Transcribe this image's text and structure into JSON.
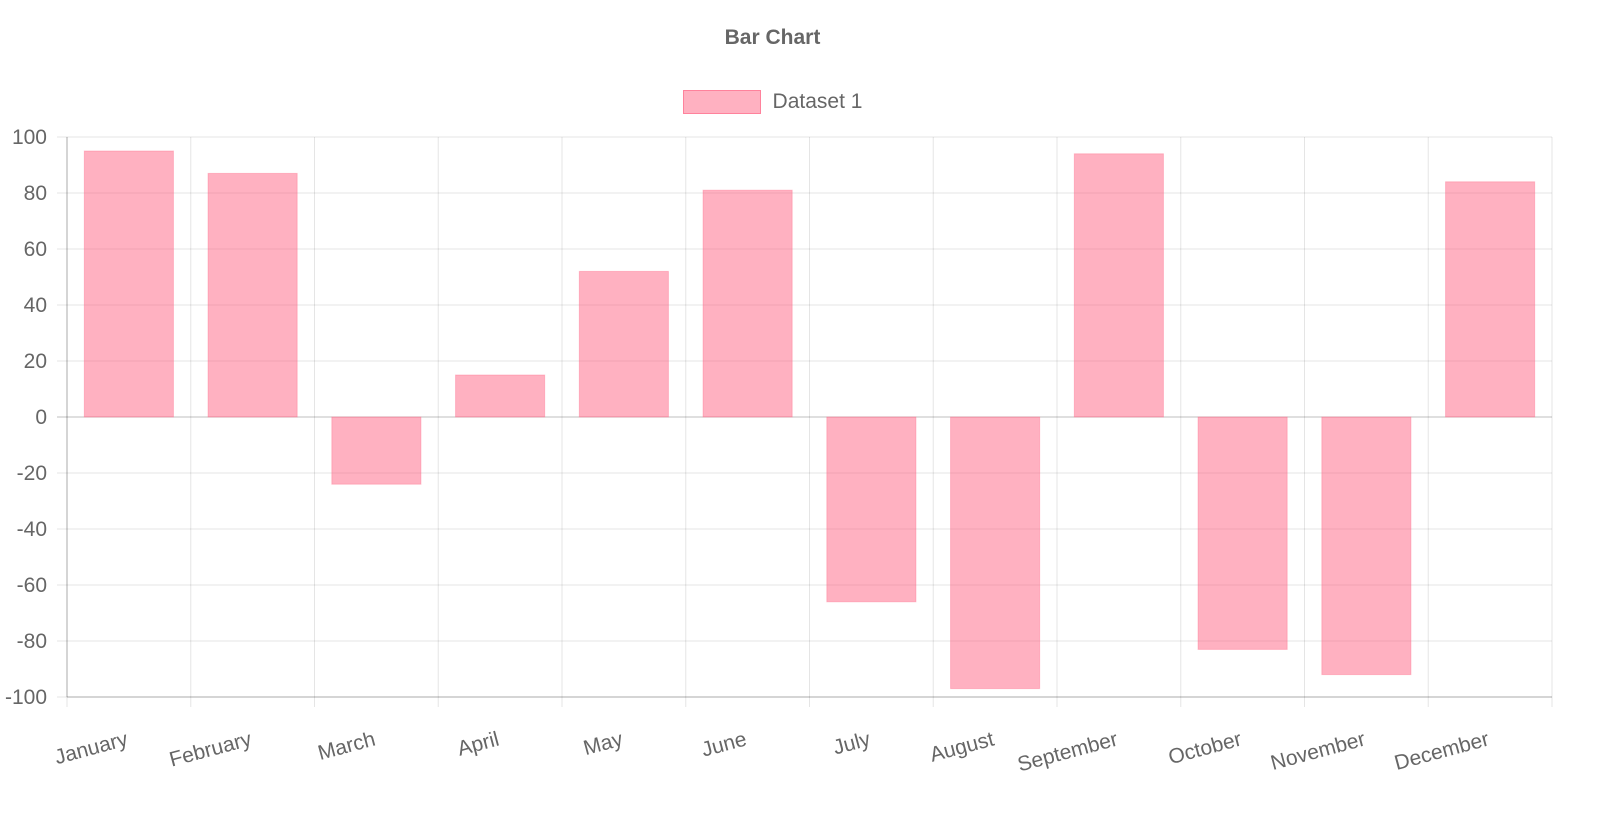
{
  "chart_data": {
    "type": "bar",
    "title": "Bar Chart",
    "legend": {
      "position": "top",
      "entries": [
        "Dataset 1"
      ]
    },
    "categories": [
      "January",
      "February",
      "March",
      "April",
      "May",
      "June",
      "July",
      "August",
      "September",
      "October",
      "November",
      "December"
    ],
    "series": [
      {
        "name": "Dataset 1",
        "values": [
          95,
          87,
          -24,
          15,
          52,
          81,
          -66,
          -97,
          94,
          -83,
          -92,
          84
        ],
        "color": "#ff6384"
      }
    ],
    "ylim": [
      -100,
      100
    ],
    "yticks": [
      100,
      80,
      60,
      40,
      20,
      0,
      -20,
      -40,
      -60,
      -80,
      -100
    ],
    "grid": true
  }
}
